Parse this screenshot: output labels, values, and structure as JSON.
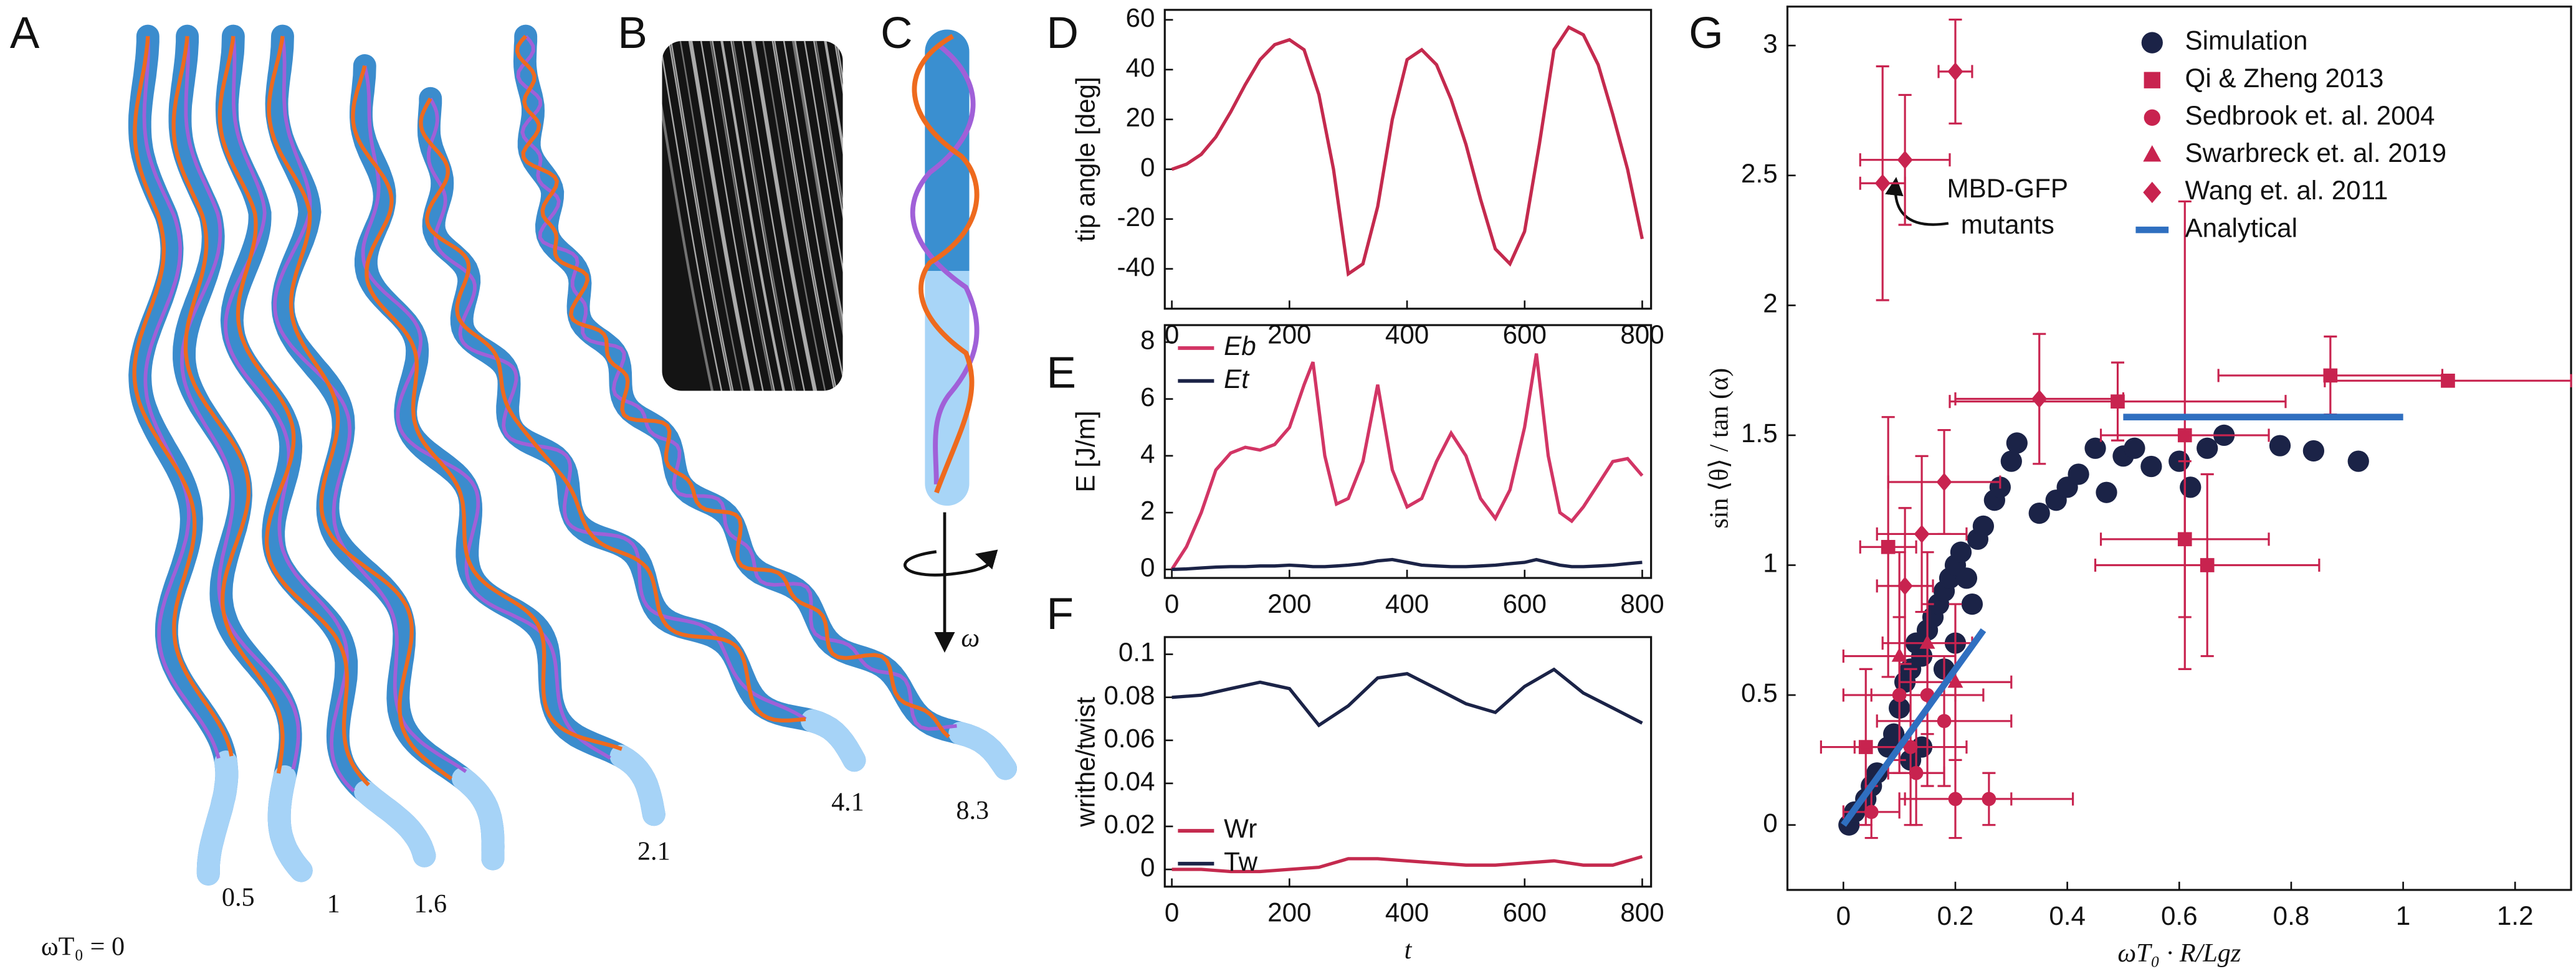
{
  "panel_labels": [
    "A",
    "B",
    "C",
    "D",
    "E",
    "F",
    "G"
  ],
  "panel_a": {
    "labels": [
      "ωT₀ = 0",
      "0.5",
      "1",
      "1.6",
      "2.1",
      "4.1",
      "8.3"
    ]
  },
  "panel_c": {
    "axis_label": "ω"
  },
  "chart_data": [
    {
      "type": "line",
      "ylabel": "tip angle [deg]",
      "x": [
        0,
        25,
        50,
        75,
        100,
        125,
        150,
        175,
        200,
        225,
        250,
        275,
        300,
        325,
        350,
        375,
        400,
        425,
        450,
        475,
        500,
        525,
        550,
        575,
        600,
        625,
        650,
        675,
        700,
        725,
        750,
        775,
        800
      ],
      "values": [
        0,
        2,
        6,
        13,
        23,
        34,
        44,
        50,
        52,
        48,
        30,
        0,
        -42,
        -38,
        -15,
        20,
        44,
        48,
        42,
        28,
        10,
        -12,
        -32,
        -38,
        -25,
        10,
        48,
        57,
        54,
        42,
        22,
        0,
        -28
      ],
      "color": "#c42a4e",
      "xlim": [
        -12,
        815
      ],
      "xticks": [
        0,
        200,
        400,
        600,
        800
      ],
      "ylim": [
        -56,
        64
      ],
      "yticks": [
        -40,
        -20,
        0,
        20,
        40,
        60
      ]
    },
    {
      "type": "line",
      "ylabel": "E [J/m]",
      "x": [
        0,
        25,
        50,
        75,
        100,
        125,
        150,
        175,
        200,
        225,
        240,
        260,
        280,
        300,
        325,
        350,
        375,
        400,
        425,
        450,
        475,
        500,
        525,
        550,
        575,
        600,
        620,
        640,
        660,
        680,
        700,
        725,
        750,
        775,
        800
      ],
      "series": [
        {
          "name": "Eb",
          "color": "#d23565",
          "values": [
            0,
            0.8,
            2,
            3.5,
            4.1,
            4.3,
            4.2,
            4.4,
            5,
            6.5,
            7.3,
            4,
            2.3,
            2.5,
            3.8,
            6.5,
            3.5,
            2.2,
            2.5,
            3.8,
            4.8,
            4,
            2.5,
            1.8,
            2.8,
            5,
            7.6,
            4,
            2,
            1.7,
            2.2,
            3,
            3.8,
            3.9,
            3.3
          ]
        },
        {
          "name": "Et",
          "color": "#1b2347",
          "values": [
            0,
            0.02,
            0.05,
            0.08,
            0.1,
            0.1,
            0.12,
            0.12,
            0.15,
            0.12,
            0.1,
            0.1,
            0.12,
            0.15,
            0.2,
            0.3,
            0.35,
            0.25,
            0.15,
            0.12,
            0.1,
            0.1,
            0.12,
            0.15,
            0.2,
            0.25,
            0.35,
            0.25,
            0.15,
            0.1,
            0.1,
            0.12,
            0.15,
            0.2,
            0.25
          ]
        }
      ],
      "xlim": [
        -12,
        815
      ],
      "xticks": [
        0,
        200,
        400,
        600,
        800
      ],
      "ylim": [
        -0.3,
        8.6
      ],
      "yticks": [
        0,
        2,
        4,
        6,
        8
      ],
      "legend": "upper left"
    },
    {
      "type": "line",
      "xlabel": "t",
      "ylabel": "writhe/twist",
      "x": [
        0,
        50,
        100,
        150,
        200,
        250,
        300,
        350,
        400,
        450,
        500,
        550,
        600,
        650,
        700,
        750,
        800
      ],
      "series": [
        {
          "name": "Wr",
          "color": "#c42a4e",
          "values": [
            0,
            0,
            -0.001,
            -0.001,
            0,
            0.001,
            0.005,
            0.005,
            0.004,
            0.003,
            0.002,
            0.002,
            0.003,
            0.004,
            0.002,
            0.002,
            0.006
          ]
        },
        {
          "name": "Tw",
          "color": "#1b2347",
          "values": [
            0.08,
            0.081,
            0.084,
            0.087,
            0.084,
            0.067,
            0.076,
            0.089,
            0.091,
            0.084,
            0.077,
            0.073,
            0.085,
            0.093,
            0.082,
            0.075,
            0.068
          ]
        }
      ],
      "xlim": [
        -12,
        815
      ],
      "xticks": [
        0,
        200,
        400,
        600,
        800
      ],
      "ylim": [
        -0.008,
        0.108
      ],
      "yticks": [
        0,
        0.02,
        0.04,
        0.06,
        0.08,
        0.1
      ],
      "legend": "lower left"
    },
    {
      "type": "scatter",
      "xlabel": "ωT₀ · R/Lgz",
      "ylabel": "sin ⟨θ⟩ / tan (α)",
      "annotation": [
        "MBD-GFP",
        "mutants"
      ],
      "xlim": [
        -0.1,
        1.3
      ],
      "xticks": [
        0,
        0.2,
        0.4,
        0.6,
        0.8,
        1,
        1.2
      ],
      "ylim": [
        -0.25,
        3.15
      ],
      "yticks": [
        0,
        0.5,
        1,
        1.5,
        2,
        2.5,
        3
      ],
      "legend": "upper right",
      "series": [
        {
          "name": "Simulation",
          "marker": "circle",
          "color": "#1b2347",
          "x": [
            0.01,
            0.02,
            0.04,
            0.05,
            0.06,
            0.08,
            0.09,
            0.1,
            0.11,
            0.12,
            0.13,
            0.14,
            0.15,
            0.16,
            0.17,
            0.18,
            0.19,
            0.2,
            0.21,
            0.22,
            0.23,
            0.24,
            0.25,
            0.27,
            0.28,
            0.3,
            0.31,
            0.35,
            0.38,
            0.4,
            0.42,
            0.45,
            0.47,
            0.5,
            0.52,
            0.55,
            0.6,
            0.62,
            0.65,
            0.68,
            0.78,
            0.84,
            0.92,
            0.18,
            0.14,
            0.2,
            0.12
          ],
          "values": [
            0,
            0.05,
            0.1,
            0.15,
            0.2,
            0.3,
            0.35,
            0.45,
            0.55,
            0.6,
            0.7,
            0.65,
            0.75,
            0.8,
            0.85,
            0.9,
            0.95,
            1,
            1.05,
            0.95,
            0.85,
            1.1,
            1.15,
            1.25,
            1.3,
            1.4,
            1.47,
            1.2,
            1.25,
            1.3,
            1.35,
            1.45,
            1.28,
            1.42,
            1.45,
            1.38,
            1.4,
            1.3,
            1.45,
            1.5,
            1.46,
            1.44,
            1.4,
            0.6,
            0.3,
            0.7,
            0.25
          ]
        },
        {
          "name": "Qi & Zheng 2013",
          "marker": "square",
          "color": "#c8234f",
          "x": [
            0.08,
            0.49,
            0.61,
            0.61,
            0.65,
            0.87,
            1.08,
            0.04
          ],
          "values": [
            1.07,
            1.63,
            1.5,
            1.1,
            1,
            1.73,
            1.71,
            0.3
          ],
          "xerr": [
            0.05,
            0.3,
            0.15,
            0.15,
            0.2,
            0.2,
            0.22,
            0.08
          ],
          "yerr": [
            0.5,
            0.15,
            0.9,
            0.3,
            0.35,
            0.15,
            0.02,
            0.3
          ]
        },
        {
          "name": "Sedbrook et. al. 2004",
          "marker": "circle",
          "color": "#c8234f",
          "x": [
            0.12,
            0.15,
            0.2,
            0.26,
            0.1,
            0.13,
            0.18,
            0.05
          ],
          "values": [
            0.3,
            0.5,
            0.1,
            0.1,
            0.5,
            0.2,
            0.4,
            0.05
          ],
          "xerr": [
            0.1,
            0.1,
            0.1,
            0.15,
            0.1,
            0.05,
            0.12,
            0.05
          ],
          "yerr": [
            0.3,
            0.35,
            0.15,
            0.1,
            0.3,
            0.2,
            0.25,
            0.1
          ]
        },
        {
          "name": "Swarbreck et. al. 2019",
          "marker": "triangle",
          "color": "#c8234f",
          "x": [
            0.1,
            0.15,
            0.2
          ],
          "values": [
            0.65,
            0.7,
            0.55
          ],
          "xerr": [
            0.1,
            0.08,
            0.1
          ],
          "yerr": [
            0.4,
            0.35,
            0.3
          ]
        },
        {
          "name": "Wang et. al. 2011",
          "marker": "diamond",
          "color": "#c8234f",
          "x": [
            0.07,
            0.11,
            0.2,
            0.35,
            0.18,
            0.14,
            0.11
          ],
          "values": [
            2.47,
            2.56,
            2.9,
            1.64,
            1.32,
            1.12,
            0.92
          ],
          "xerr": [
            0.04,
            0.08,
            0.03,
            0.15,
            0.1,
            0.08,
            0.05
          ],
          "yerr": [
            0.45,
            0.25,
            0.2,
            0.25,
            0.2,
            0.3,
            0.3
          ]
        },
        {
          "name": "Analytical",
          "marker": "line",
          "color": "#2f6fc0",
          "segments": [
            {
              "x": [
                0,
                0.25
              ],
              "values": [
                0,
                0.75
              ]
            },
            {
              "x": [
                0.5,
                1
              ],
              "values": [
                1.57,
                1.57
              ]
            }
          ]
        }
      ]
    }
  ]
}
